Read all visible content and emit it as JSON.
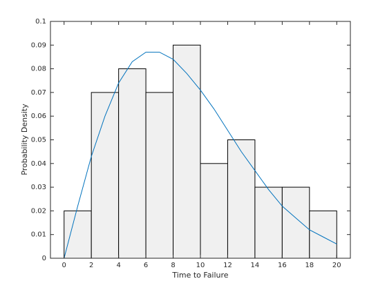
{
  "chart_data": {
    "type": "histogram",
    "xlabel": "Time to Failure",
    "ylabel": "Probability Density",
    "bins": [
      0,
      2,
      4,
      6,
      8,
      10,
      12,
      14,
      16,
      18,
      20
    ],
    "values": [
      0.02,
      0.07,
      0.08,
      0.07,
      0.09,
      0.04,
      0.05,
      0.03,
      0.03,
      0.02
    ],
    "color": "#f0f0f0",
    "edgecolor": "#000000",
    "curve": {
      "type": "line",
      "color": "#0072bd",
      "x": [
        0,
        1,
        2,
        3,
        4,
        5,
        6,
        7,
        8,
        9,
        10,
        11,
        12,
        13,
        14,
        15,
        16,
        17,
        18,
        19,
        20
      ],
      "values": [
        0,
        0.022,
        0.043,
        0.06,
        0.074,
        0.083,
        0.087,
        0.087,
        0.084,
        0.078,
        0.071,
        0.063,
        0.054,
        0.045,
        0.037,
        0.029,
        0.022,
        0.017,
        0.012,
        0.009,
        0.006
      ]
    },
    "xlim": [
      -1,
      21
    ],
    "ylim": [
      0,
      0.1
    ],
    "xticks": [
      0,
      2,
      4,
      6,
      8,
      10,
      12,
      14,
      16,
      18,
      20
    ],
    "yticks": [
      0,
      0.01,
      0.02,
      0.03,
      0.04,
      0.05,
      0.06,
      0.07,
      0.08,
      0.09,
      0.1
    ]
  }
}
